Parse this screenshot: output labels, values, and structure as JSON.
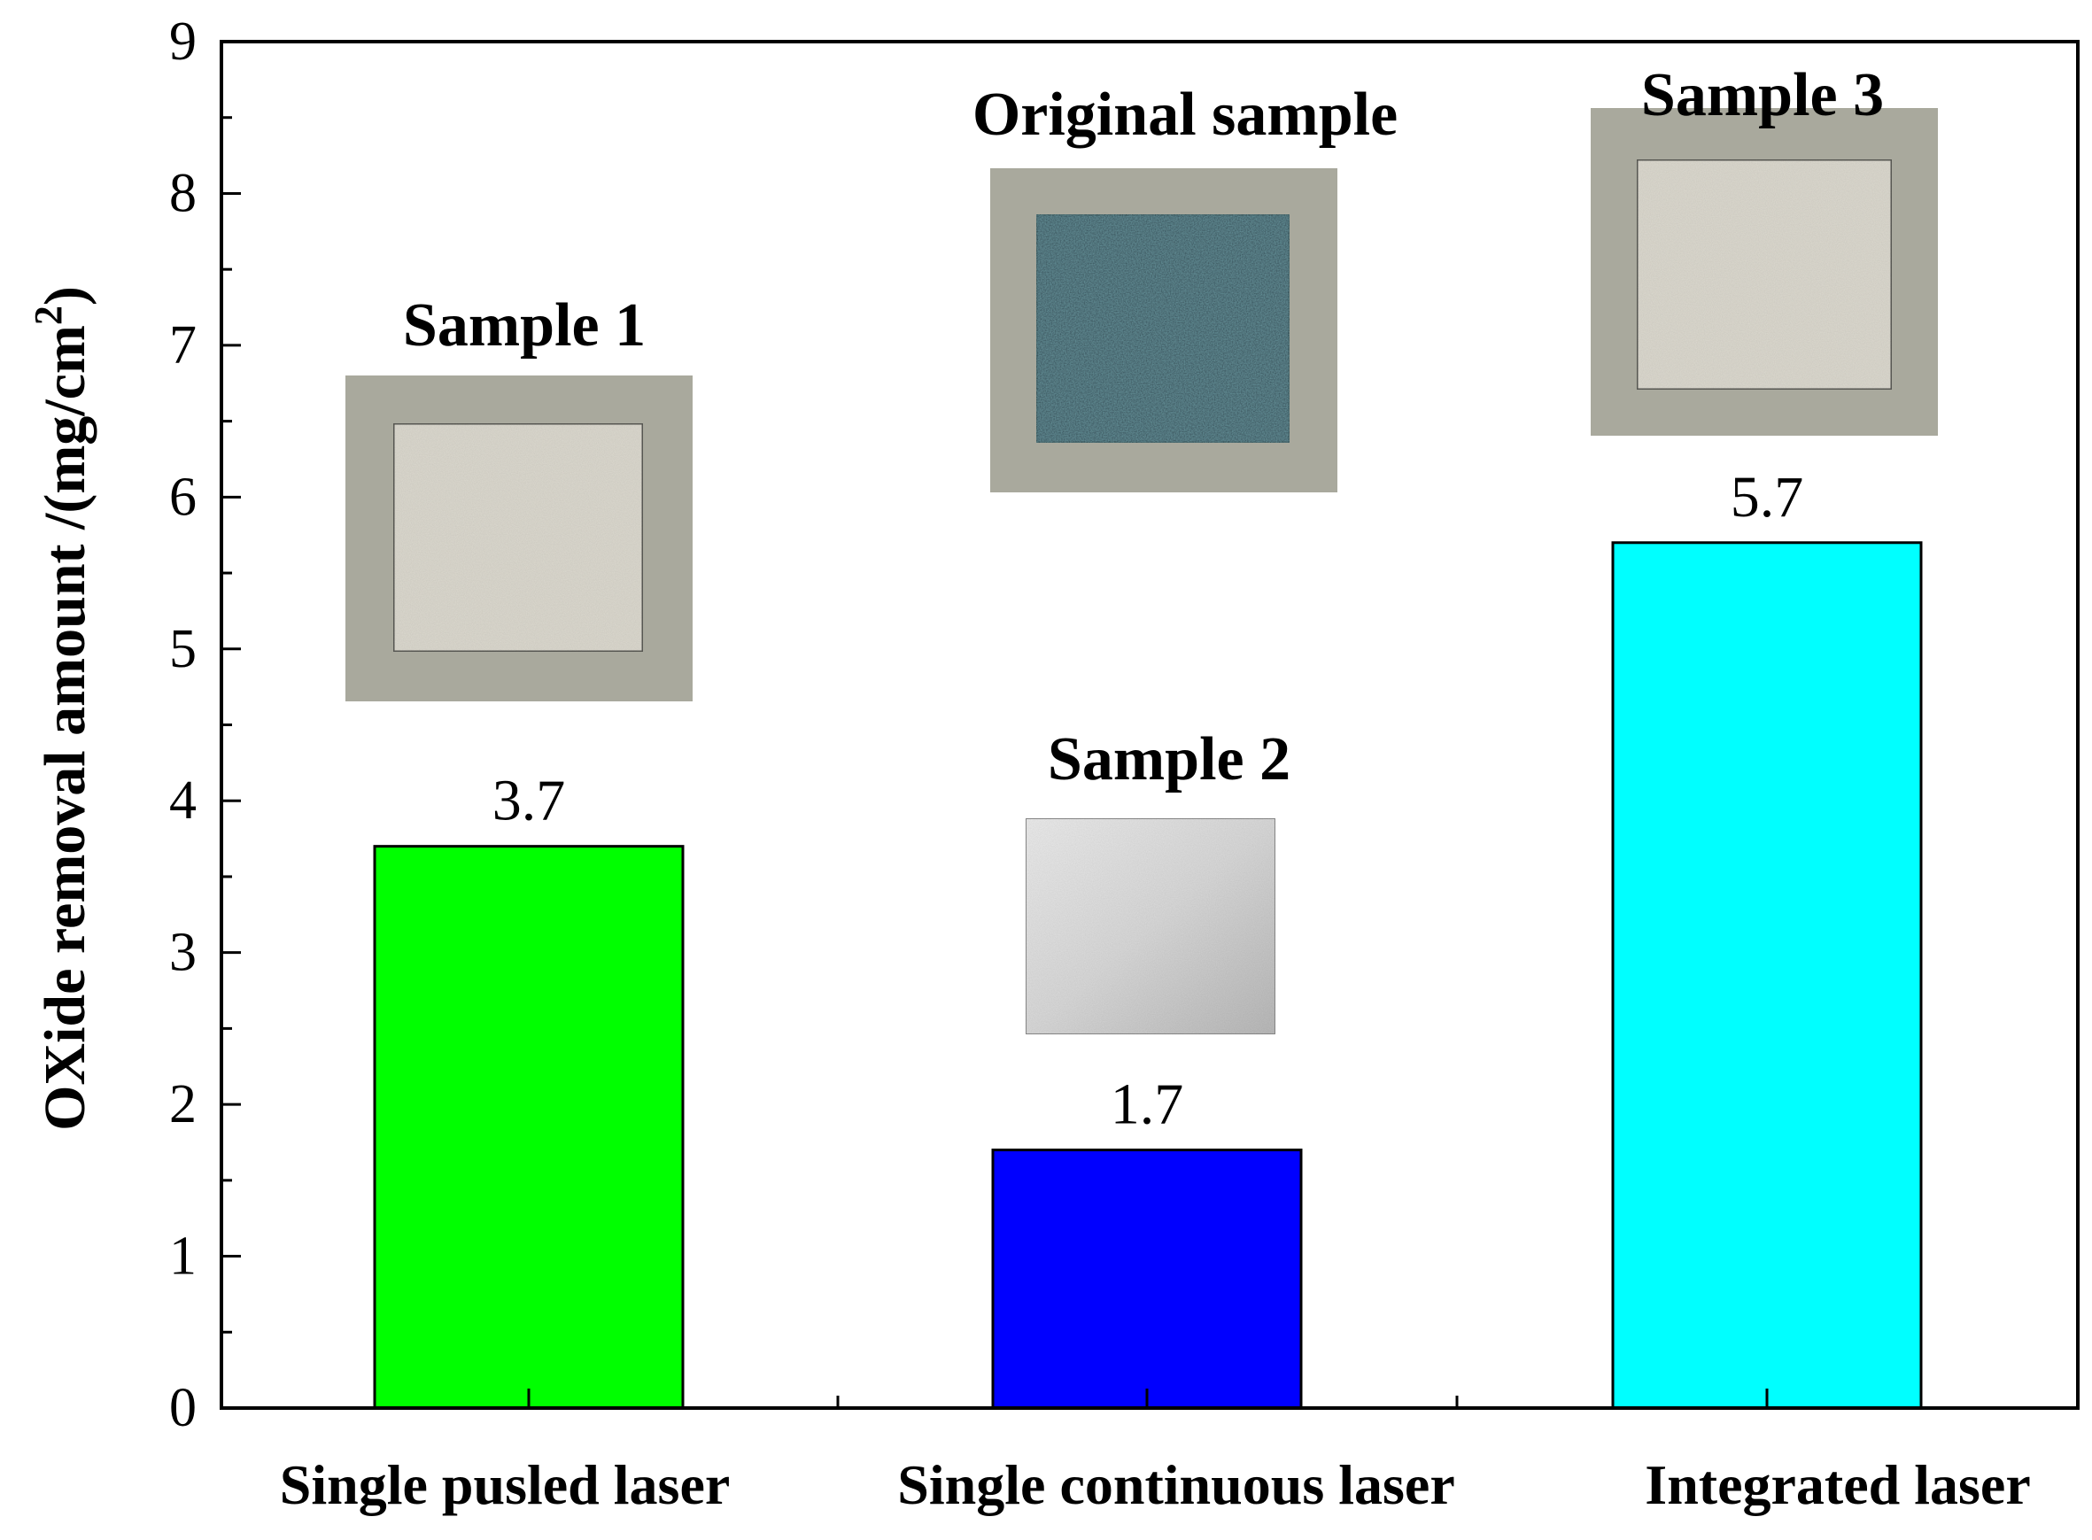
{
  "chart_data": {
    "type": "bar",
    "title": "",
    "xlabel": "",
    "ylabel": "OXide removal amount /(mg/cm",
    "ylabel_superscript": "2",
    "ylabel_close": ")",
    "categories": [
      "Single pusled laser",
      "Single continuous laser",
      "Integrated laser"
    ],
    "values": [
      3.7,
      1.7,
      5.7
    ],
    "data_labels": [
      "3.7",
      "1.7",
      "5.7"
    ],
    "bar_colors": [
      "#00ff00",
      "#0000ff",
      "#00ffff"
    ],
    "ylim": [
      0,
      9
    ],
    "yticks": [
      "0",
      "1",
      "2",
      "3",
      "4",
      "5",
      "6",
      "7",
      "8",
      "9"
    ],
    "grid": false,
    "legend": "none",
    "annotations": [
      {
        "text": "Sample 1",
        "image": "polished-metal-sample",
        "tone": "light"
      },
      {
        "text": "Original sample",
        "image": "oxidized-metal-sample",
        "tone": "dark"
      },
      {
        "text": "Sample 2",
        "image": "rough-metal-sample",
        "tone": "light"
      },
      {
        "text": "Sample 3",
        "image": "polished-metal-sample",
        "tone": "light"
      }
    ]
  }
}
